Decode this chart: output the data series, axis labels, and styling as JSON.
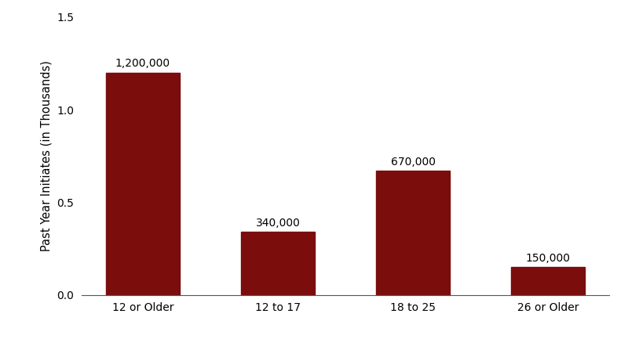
{
  "categories": [
    "12 or Older",
    "12 to 17",
    "18 to 25",
    "26 or Older"
  ],
  "values": [
    1.2,
    0.34,
    0.67,
    0.15
  ],
  "labels": [
    "1,200,000",
    "340,000",
    "670,000",
    "150,000"
  ],
  "bar_color": "#7B0D0D",
  "ylabel": "Past Year Initiates (in Thousands)",
  "ylim": [
    0,
    1.5
  ],
  "yticks": [
    0.0,
    0.5,
    1.0,
    1.5
  ],
  "ytick_labels": [
    "0.0",
    "0.5",
    "1.0",
    "1.5"
  ],
  "background_color": "#ffffff",
  "label_fontsize": 10,
  "tick_fontsize": 10,
  "ylabel_fontsize": 10.5,
  "bar_width": 0.55
}
